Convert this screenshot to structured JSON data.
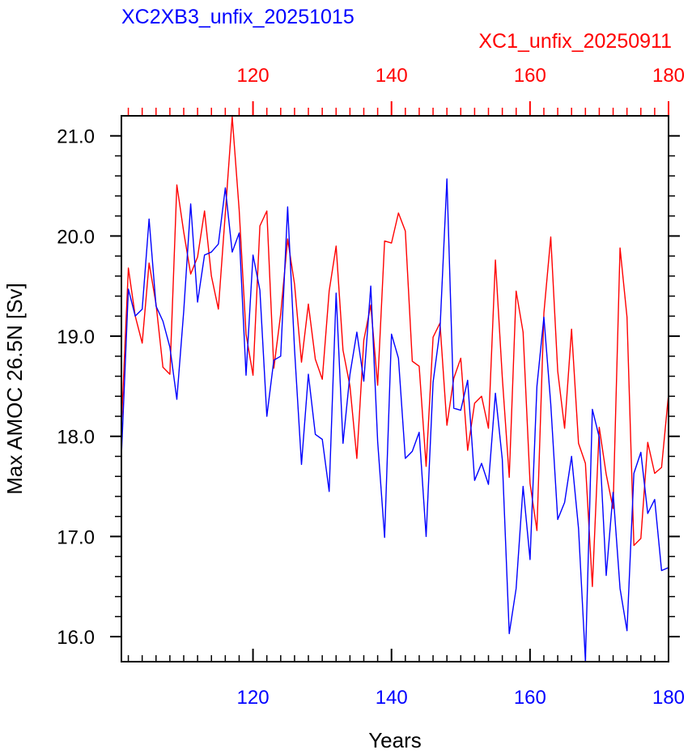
{
  "chart_data": {
    "type": "line",
    "title_bottom_series": "XC2XB3_unfix_20251015",
    "title_top_series": "XC1_unfix_20250911",
    "xlabel": "Years",
    "ylabel": "Max AMOC 26.5N [Sv]",
    "xlim": [
      101,
      180
    ],
    "ylim": [
      15.75,
      21.2
    ],
    "x_ticks": [
      120,
      140,
      160,
      180
    ],
    "x_tick_labels": [
      "120",
      "140",
      "160",
      "180"
    ],
    "y_ticks": [
      16.0,
      17.0,
      18.0,
      19.0,
      20.0,
      21.0
    ],
    "y_tick_labels": [
      "16.0",
      "17.0",
      "18.0",
      "19.0",
      "20.0",
      "21.0"
    ],
    "grid": false,
    "colors": {
      "bottom_axis_series": "#0000ff",
      "top_axis_series": "#ff0000",
      "axes": "#000000"
    },
    "series": [
      {
        "name": "XC2XB3_unfix_20251015",
        "axis": "bottom",
        "color": "#0000ff",
        "x": [
          101,
          102,
          103,
          104,
          105,
          106,
          107,
          108,
          109,
          110,
          111,
          112,
          113,
          114,
          115,
          116,
          117,
          118,
          119,
          120,
          121,
          122,
          123,
          124,
          125,
          126,
          127,
          128,
          129,
          130,
          131,
          132,
          133,
          134,
          135,
          136,
          137,
          138,
          139,
          140,
          141,
          142,
          143,
          144,
          145,
          146,
          147,
          148,
          149,
          150,
          151,
          152,
          153,
          154,
          155,
          156,
          157,
          158,
          159,
          160,
          161,
          162,
          163,
          164,
          165,
          166,
          167,
          168,
          169,
          170,
          171,
          172,
          173,
          174,
          175,
          176,
          177,
          178,
          179,
          180
        ],
        "values": [
          17.8,
          19.47,
          19.2,
          19.27,
          20.17,
          19.3,
          19.15,
          18.89,
          18.37,
          19.25,
          20.32,
          19.34,
          19.81,
          19.84,
          19.92,
          20.48,
          19.84,
          20.03,
          18.61,
          19.81,
          19.46,
          18.2,
          18.76,
          18.8,
          20.29,
          18.87,
          17.72,
          18.62,
          18.02,
          17.97,
          17.45,
          19.43,
          17.93,
          18.62,
          19.04,
          18.55,
          19.5,
          17.95,
          16.99,
          19.02,
          18.78,
          17.78,
          17.85,
          18.04,
          17.0,
          18.54,
          19.06,
          20.57,
          18.28,
          18.26,
          18.56,
          17.56,
          17.73,
          17.52,
          18.43,
          17.77,
          16.03,
          16.48,
          17.5,
          16.77,
          18.5,
          19.19,
          18.32,
          17.17,
          17.34,
          17.8,
          17.08,
          15.76,
          18.27,
          17.99,
          16.61,
          17.44,
          16.48,
          16.06,
          17.63,
          17.84,
          17.23,
          17.37,
          16.66,
          16.69
        ]
      },
      {
        "name": "XC1_unfix_20250911",
        "axis": "top",
        "color": "#ff0000",
        "x": [
          101,
          102,
          103,
          104,
          105,
          106,
          107,
          108,
          109,
          110,
          111,
          112,
          113,
          114,
          115,
          116,
          117,
          118,
          119,
          120,
          121,
          122,
          123,
          124,
          125,
          126,
          127,
          128,
          129,
          130,
          131,
          132,
          133,
          134,
          135,
          136,
          137,
          138,
          139,
          140,
          141,
          142,
          143,
          144,
          145,
          146,
          147,
          148,
          149,
          150,
          151,
          152,
          153,
          154,
          155,
          156,
          157,
          158,
          159,
          160,
          161,
          162,
          163,
          164,
          165,
          166,
          167,
          168,
          169,
          170,
          171,
          172,
          173,
          174,
          175,
          176,
          177,
          178,
          179,
          180
        ],
        "values": [
          18.1,
          19.68,
          19.2,
          18.93,
          19.73,
          19.32,
          18.69,
          18.62,
          20.51,
          20.04,
          19.62,
          19.79,
          20.25,
          19.6,
          19.27,
          20.23,
          21.19,
          20.26,
          19.02,
          18.61,
          20.1,
          20.25,
          18.68,
          19.22,
          19.97,
          19.52,
          18.74,
          19.32,
          18.77,
          18.57,
          19.45,
          19.9,
          18.86,
          18.5,
          17.78,
          18.96,
          19.31,
          18.51,
          19.95,
          19.93,
          20.23,
          20.05,
          18.75,
          18.7,
          17.7,
          18.99,
          19.13,
          18.11,
          18.58,
          18.78,
          17.86,
          18.33,
          18.4,
          18.08,
          19.76,
          18.59,
          17.59,
          19.45,
          19.04,
          17.53,
          17.06,
          19.23,
          19.99,
          18.65,
          18.08,
          19.07,
          17.93,
          17.73,
          16.5,
          18.09,
          17.62,
          17.28,
          19.88,
          19.19,
          16.91,
          16.98,
          17.94,
          17.63,
          17.69,
          18.42
        ]
      }
    ]
  }
}
